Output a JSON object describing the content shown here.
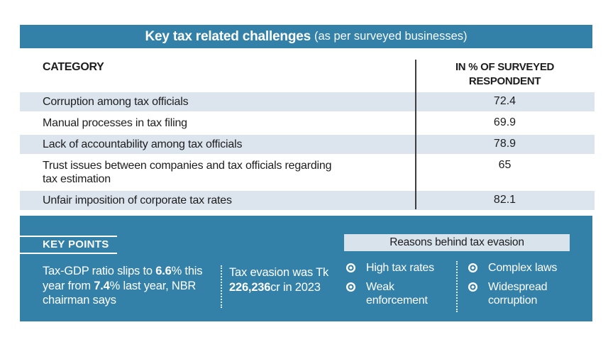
{
  "header": {
    "title_bold": "Key tax related challenges",
    "title_note": " (as per surveyed businesses)"
  },
  "table": {
    "col_category": "CATEGORY",
    "col_value_line1": "IN % OF SURVEYED",
    "col_value_line2": "RESPONDENT",
    "rows": [
      {
        "label": "Corruption among tax officials",
        "value": "72.4"
      },
      {
        "label": "Manual processes in tax filing",
        "value": "69.9"
      },
      {
        "label": "Lack of accountability among tax officials",
        "value": "78.9"
      },
      {
        "label": "Trust issues between companies and tax officials regarding",
        "label2": "tax estimation",
        "value": "65"
      },
      {
        "label": "Unfair imposition of corporate tax rates",
        "value": "82.1"
      }
    ]
  },
  "panel": {
    "key_points_label": "KEY POINTS",
    "point1": {
      "pre": "Tax-GDP ratio slips to ",
      "bold1": "6.6",
      "mid": "% this year from ",
      "bold2": "7.4",
      "post": "% last year, NBR chairman says"
    },
    "point2": {
      "pre": "Tax evasion was Tk ",
      "bold": "226,236",
      "post": "cr in 2023"
    },
    "reasons": {
      "title": "Reasons behind tax evasion",
      "items": [
        {
          "label": "High tax rates"
        },
        {
          "label": "Complex laws"
        },
        {
          "label": "Weak",
          "label2": "enforcement"
        },
        {
          "label": "Widespread",
          "label2": "corruption"
        }
      ]
    }
  },
  "colors": {
    "teal": "#3381A8",
    "row_light": "#DCE5ED",
    "box_light": "#D9E3EC",
    "divider_dark": "#3D3D3D"
  },
  "chart_data": {
    "type": "table",
    "title": "Key tax related challenges (as per surveyed businesses)",
    "columns": [
      "CATEGORY",
      "IN % OF SURVEYED RESPONDENT"
    ],
    "categories": [
      "Corruption among tax officials",
      "Manual processes in tax filing",
      "Lack of accountability among tax officials",
      "Trust issues between companies and tax officials regarding tax estimation",
      "Unfair imposition of corporate tax rates"
    ],
    "values": [
      72.4,
      69.9,
      78.9,
      65,
      82.1
    ],
    "annotations": [
      "Tax-GDP ratio slips to 6.6% this year from 7.4% last year, NBR chairman says",
      "Tax evasion was Tk 226,236cr in 2023",
      "Reasons behind tax evasion: High tax rates, Complex laws, Weak enforcement, Widespread corruption"
    ]
  }
}
